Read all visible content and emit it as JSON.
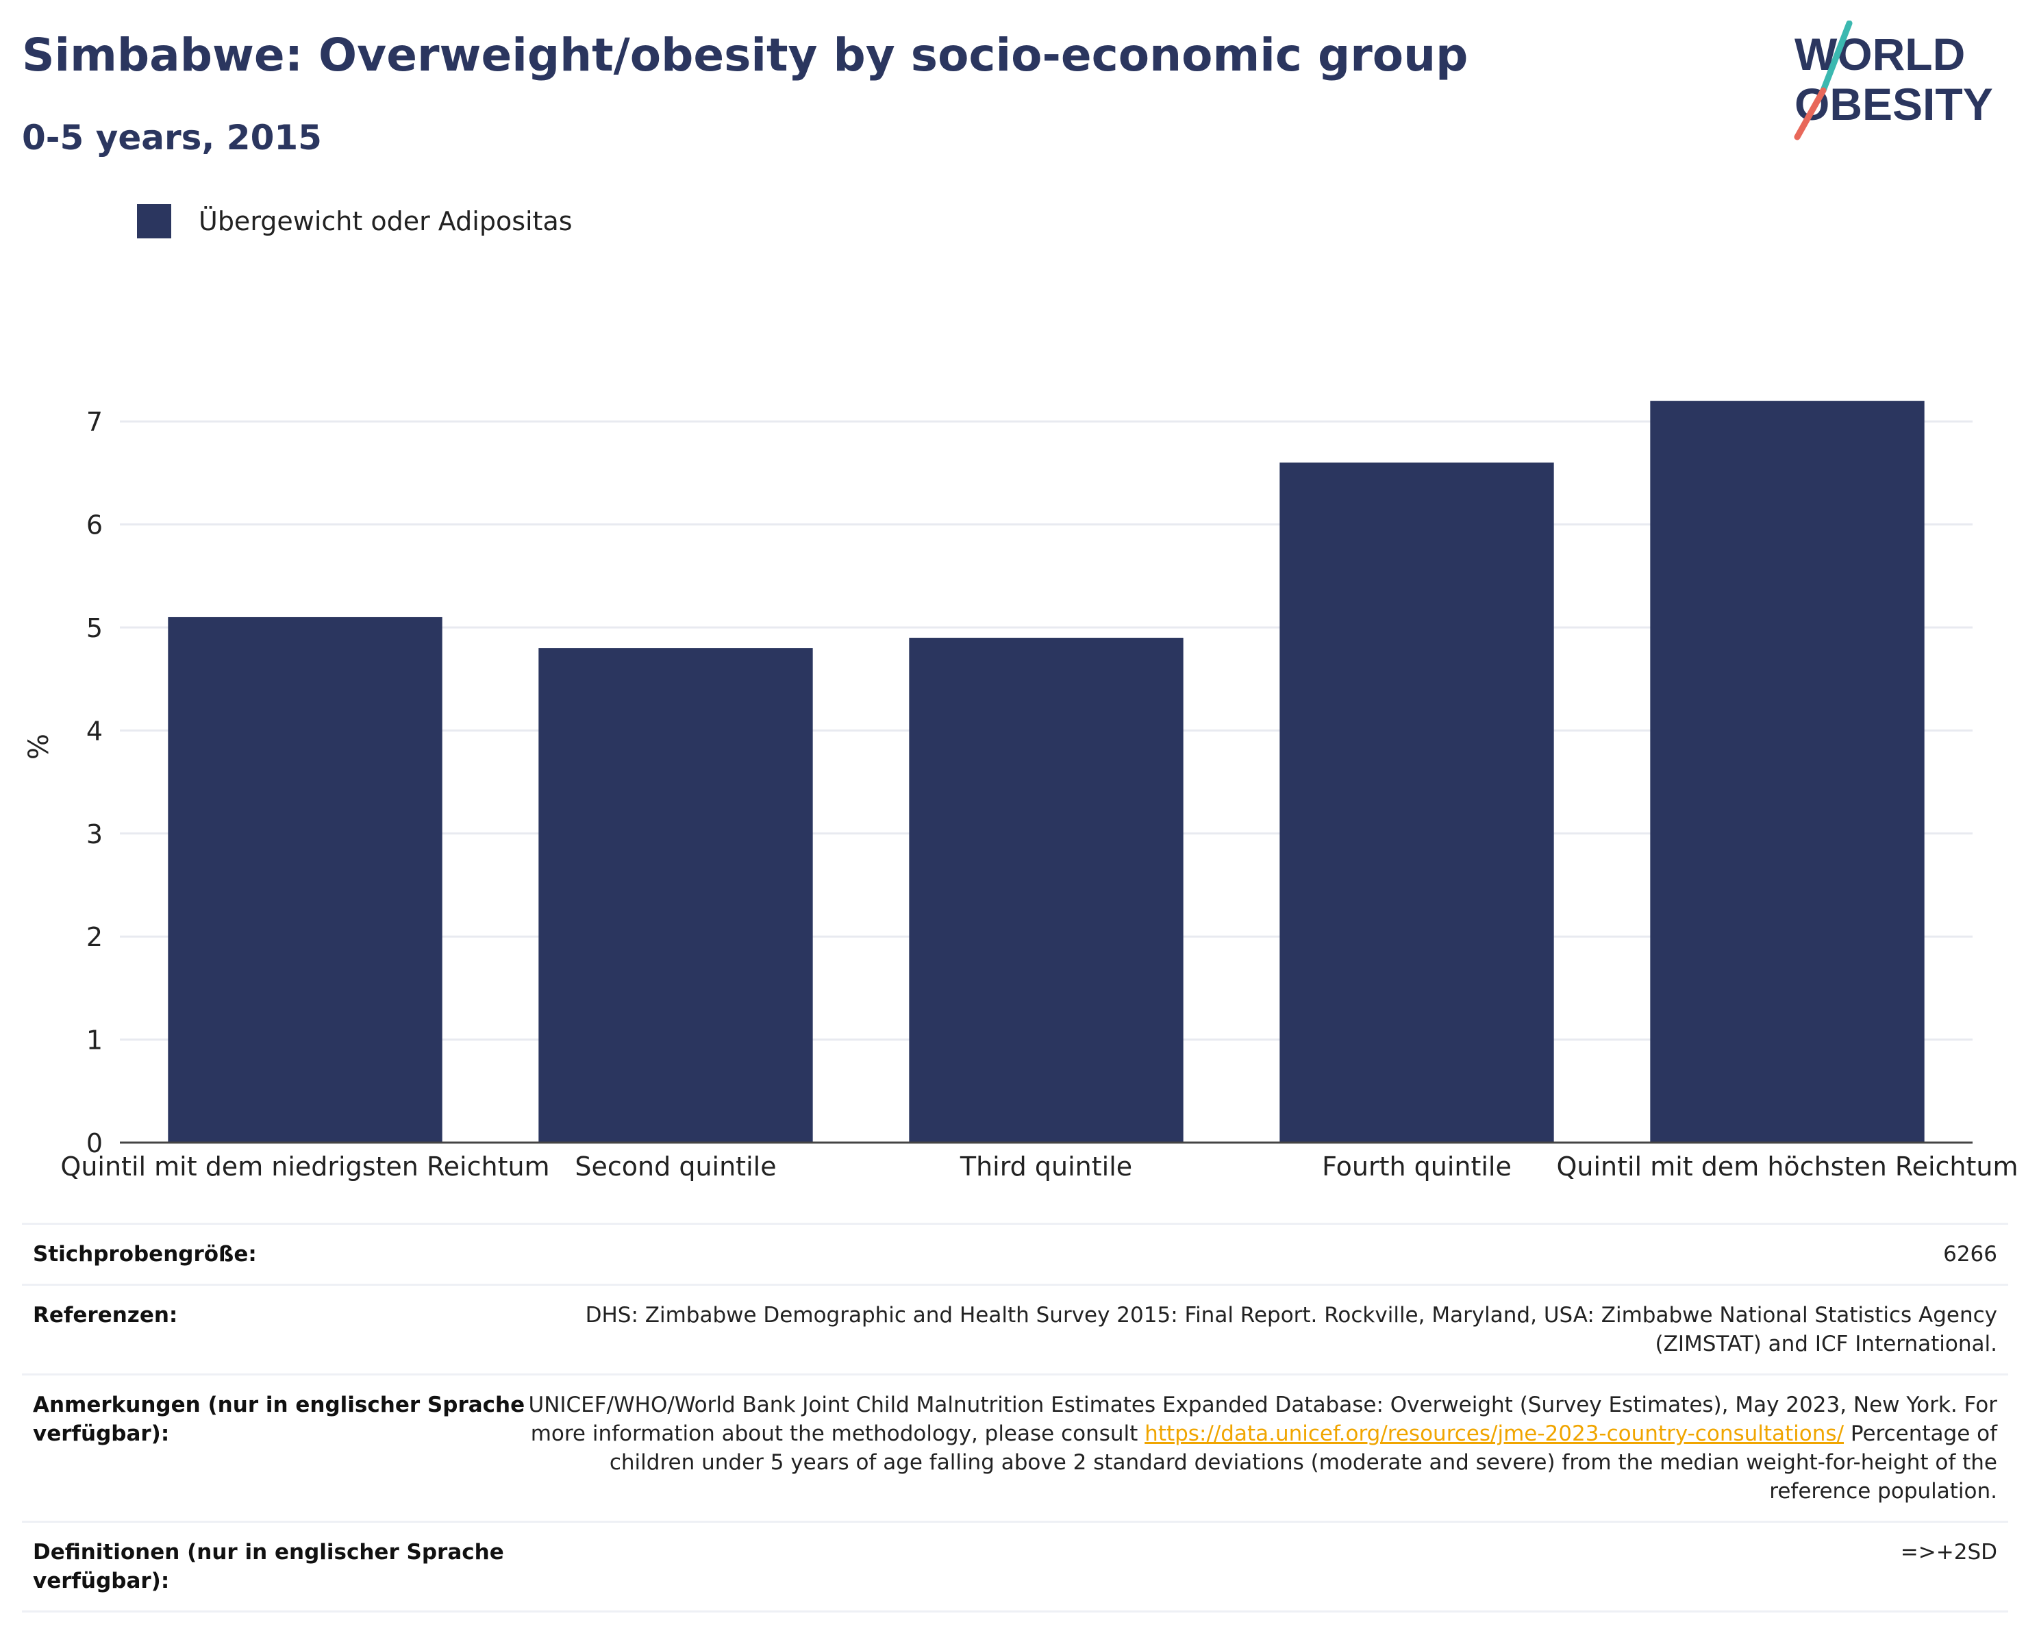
{
  "header": {
    "title": "Simbabwe: Overweight/obesity by socio-economic group",
    "subtitle": "0-5 years, 2015"
  },
  "logo": {
    "line1": "WORLD",
    "line2": "OBESITY",
    "accent_teal": "#3bb8b0",
    "accent_red": "#e8685a",
    "text_color": "#2b365f"
  },
  "legend": {
    "label": "Übergewicht oder Adipositas",
    "color": "#2b365f"
  },
  "chart_data": {
    "type": "bar",
    "categories": [
      "Quintil mit dem niedrigsten Reichtum",
      "Second quintile",
      "Third quintile",
      "Fourth quintile",
      "Quintil mit dem höchsten Reichtum"
    ],
    "series": [
      {
        "name": "Übergewicht oder Adipositas",
        "values": [
          5.1,
          4.8,
          4.9,
          6.6,
          7.2
        ],
        "color": "#2b365f"
      }
    ],
    "ylabel": "%",
    "xlabel": "",
    "ylim": [
      0,
      7.5
    ],
    "yticks": [
      "0",
      "1",
      "2",
      "3",
      "4",
      "5",
      "6",
      "7"
    ],
    "grid": true
  },
  "meta": {
    "sample_label": "Stichprobengröße:",
    "sample_value": "6266",
    "references_label": "Referenzen:",
    "references_value": "DHS: Zimbabwe Demographic and Health Survey 2015: Final Report. Rockville, Maryland, USA: Zimbabwe National Statistics Agency (ZIMSTAT) and ICF International.",
    "notes_label": "Anmerkungen (nur in englischer Sprache verfügbar):",
    "notes_text_before": "UNICEF/WHO/World Bank Joint Child Malnutrition Estimates Expanded Database: Overweight (Survey Estimates), May 2023, New York. For more information about the methodology, please consult",
    "notes_link": "https://data.unicef.org/resources/jme-2023-country-consultations/",
    "notes_text_after": "Percentage of children under 5 years of age falling above 2 standard deviations (moderate and severe) from the median weight-for-height of the reference population.",
    "definitions_label": "Definitionen (nur in englischer Sprache verfügbar):",
    "definitions_value": "=>+2SD"
  }
}
